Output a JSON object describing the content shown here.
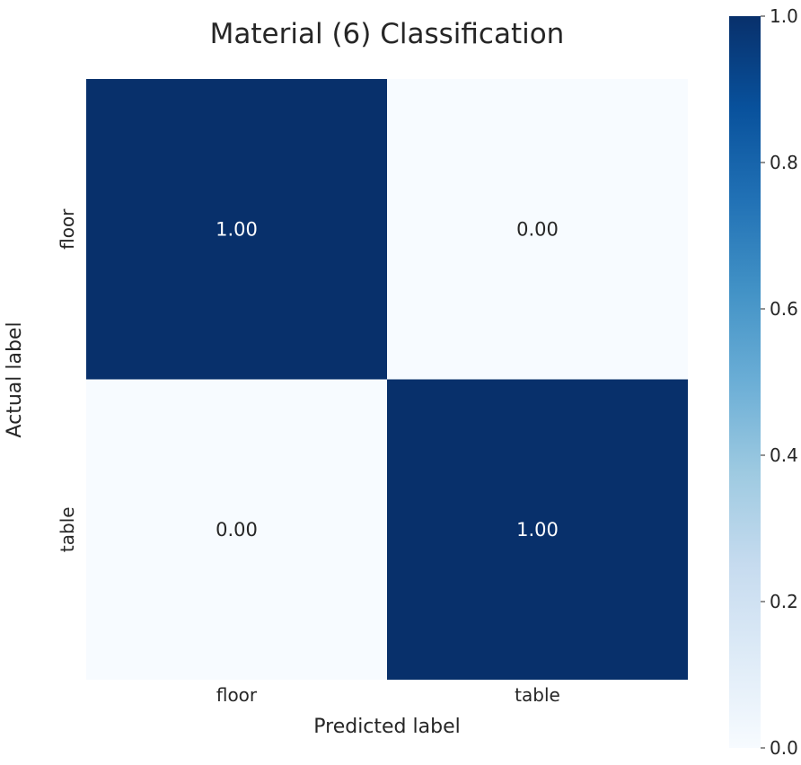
{
  "chart_data": {
    "type": "heatmap",
    "title": "Material (6) Classification",
    "xlabel": "Predicted label",
    "ylabel": "Actual label",
    "x_categories": [
      "floor",
      "table"
    ],
    "y_categories": [
      "floor",
      "table"
    ],
    "values": [
      [
        1.0,
        0.0
      ],
      [
        0.0,
        1.0
      ]
    ],
    "cell_labels": [
      [
        "1.00",
        "0.00"
      ],
      [
        "0.00",
        "1.00"
      ]
    ],
    "colorscale": "Blues",
    "color_low": "#f7fbff",
    "color_high": "#08306b",
    "colorbar": {
      "range": [
        0.0,
        1.0
      ],
      "ticks": [
        0.0,
        0.2,
        0.4,
        0.6,
        0.8,
        1.0
      ],
      "tick_labels": [
        "0.0",
        "0.2",
        "0.4",
        "0.6",
        "0.8",
        "1.0"
      ]
    },
    "grid": false,
    "legend": "colorbar-right"
  }
}
